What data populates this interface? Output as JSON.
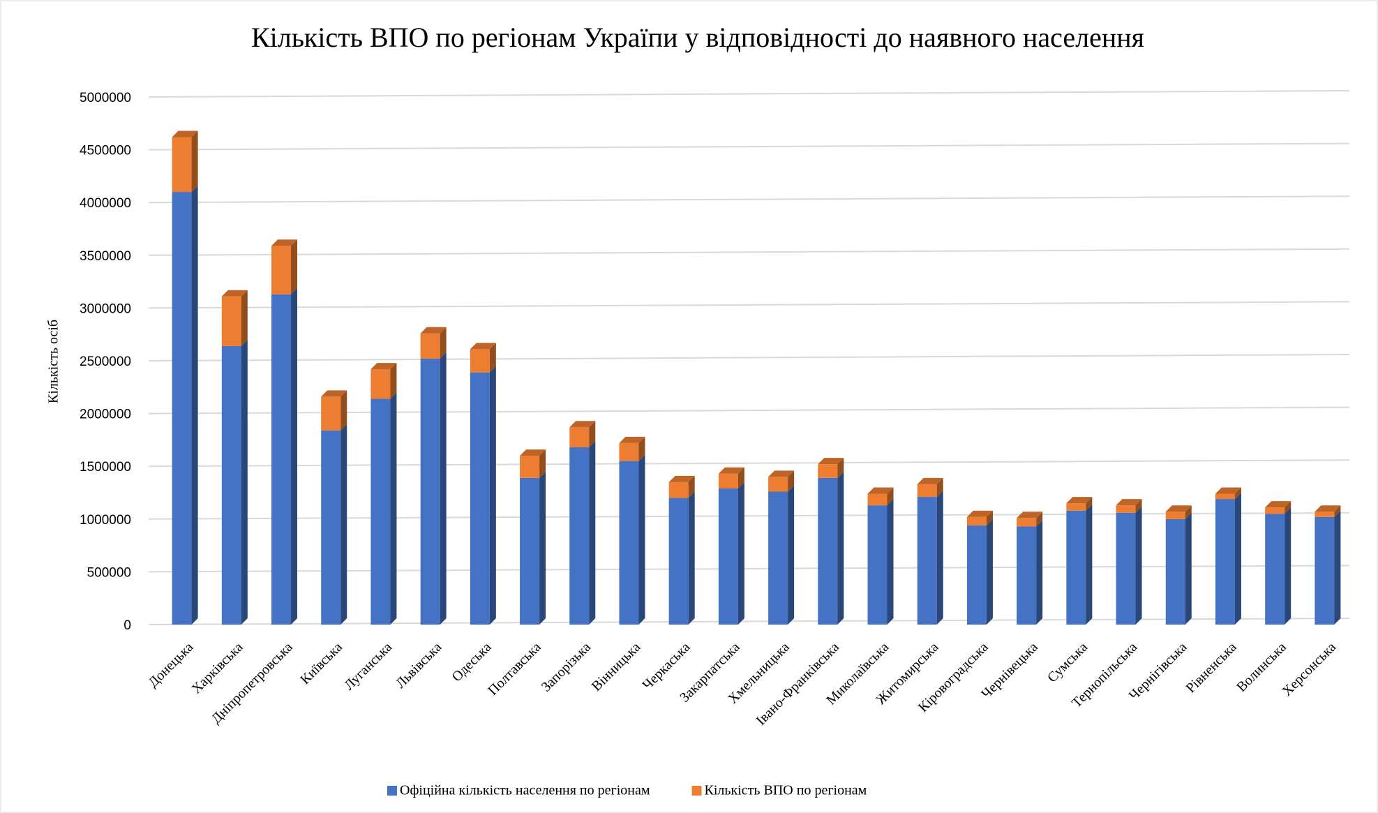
{
  "chart_data": {
    "type": "bar",
    "stacked": true,
    "title": "Кількість ВПО по регіонам Україпи у відповідності до наявного населення",
    "ylabel": "Кількість осіб",
    "categories": [
      "Донецька",
      "Харківська",
      "Дніпропетровська",
      "Київська",
      "Луганська",
      "Львівська",
      "Одеська",
      "Полтавська",
      "Запорізька",
      "Вінницька",
      "Черкаська",
      "Закарпатська",
      "Хмельницька",
      "Івано-Франківська",
      "Миколаївська",
      "Житомирська",
      "Кіровоградська",
      "Чернівецька",
      "Сумська",
      "Тернопільська",
      "Чернігівська",
      "Рівненська",
      "Волинська",
      "Херсонська"
    ],
    "series": [
      {
        "name": "Офіційна кількість населення по регіонам",
        "color": "#4472c4",
        "values": [
          4100000,
          2640000,
          3130000,
          1840000,
          2140000,
          2520000,
          2390000,
          1390000,
          1680000,
          1550000,
          1200000,
          1290000,
          1260000,
          1390000,
          1130000,
          1210000,
          940000,
          930000,
          1080000,
          1060000,
          1000000,
          1190000,
          1050000,
          1020000
        ]
      },
      {
        "name": "Кількість ВПО по регіонам",
        "color": "#ed7d31",
        "values": [
          520000,
          470000,
          460000,
          320000,
          280000,
          240000,
          220000,
          210000,
          190000,
          170000,
          150000,
          140000,
          140000,
          130000,
          110000,
          120000,
          80000,
          80000,
          70000,
          70000,
          70000,
          50000,
          60000,
          50000
        ]
      }
    ],
    "ylim": [
      0,
      5000000
    ],
    "yticks": [
      0,
      500000,
      1000000,
      1500000,
      2000000,
      2500000,
      3000000,
      3500000,
      4000000,
      4500000,
      5000000
    ],
    "grid": true,
    "legend": "bottom"
  }
}
